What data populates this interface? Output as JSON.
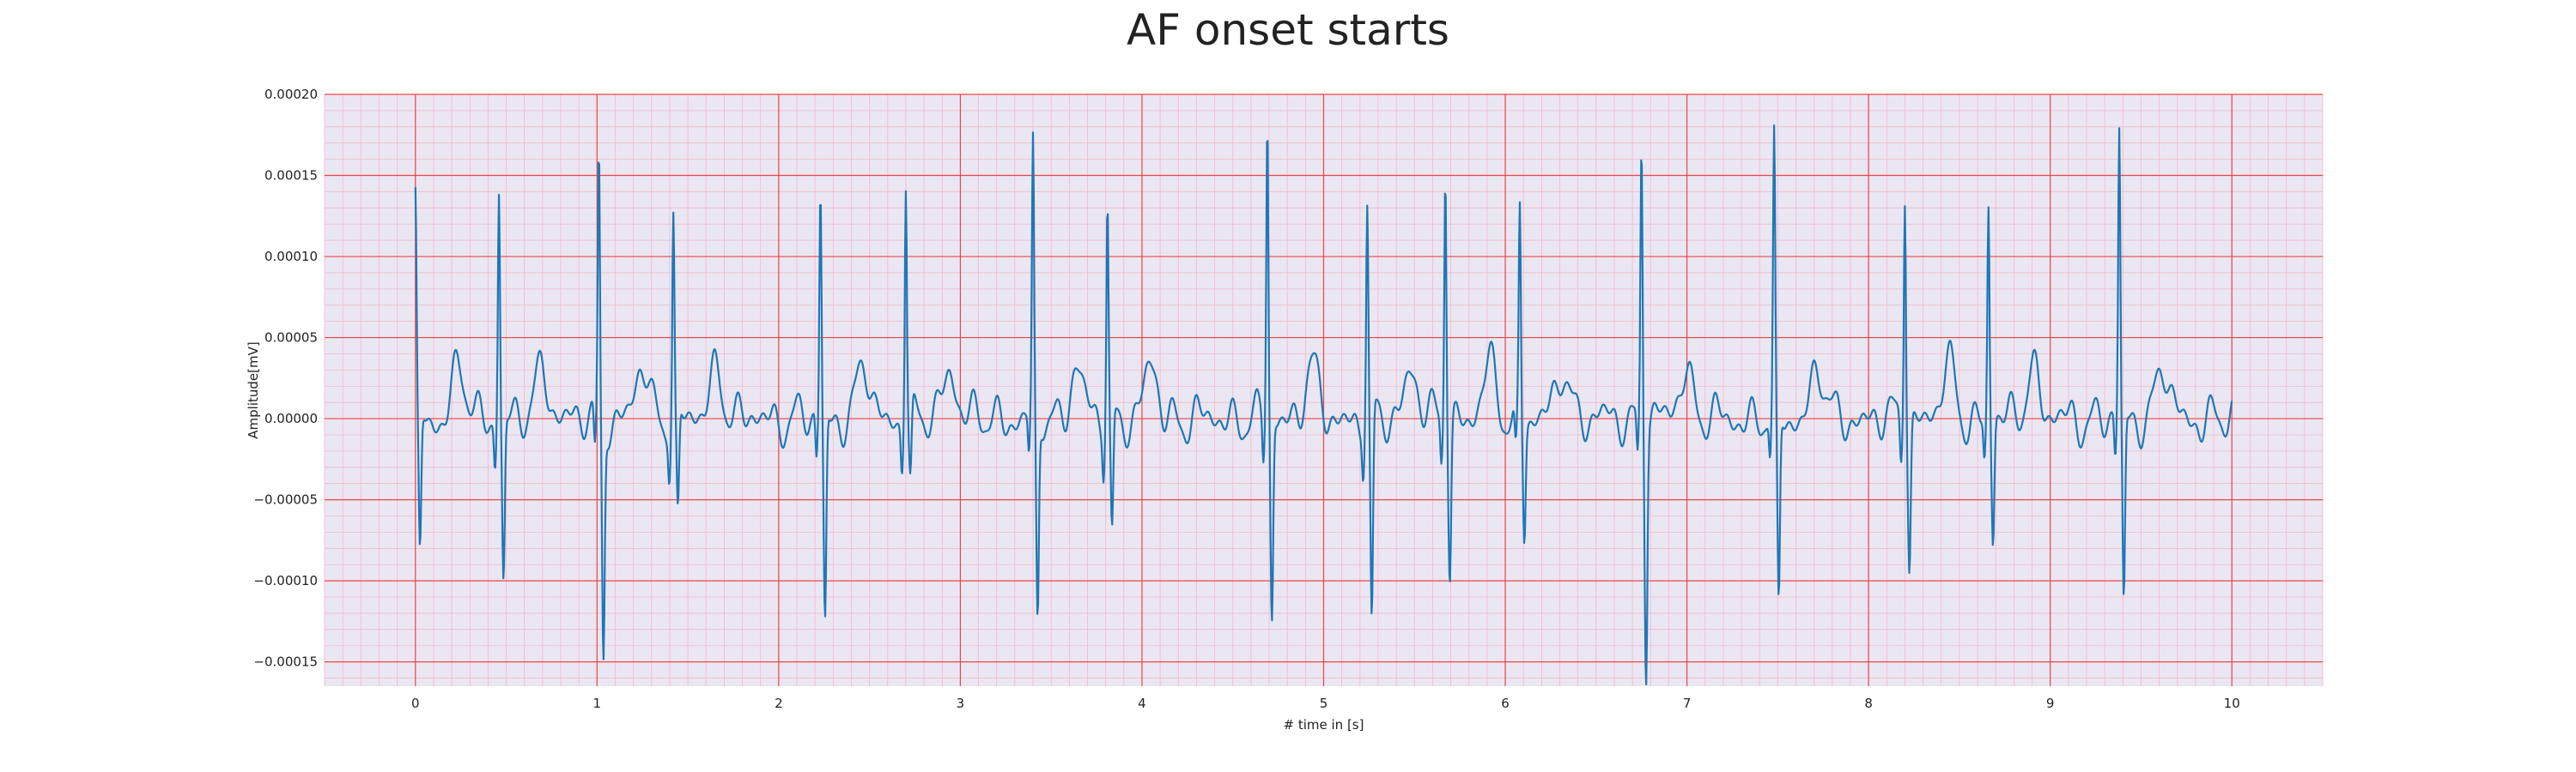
{
  "chart_data": {
    "type": "line",
    "title": "AF onset starts",
    "xlabel": "# time in [s]",
    "ylabel": "Amplitude[mV]",
    "xlim": [
      -0.5,
      10.5
    ],
    "ylim": [
      -0.000165,
      0.0002
    ],
    "xticks": [
      0,
      1,
      2,
      3,
      4,
      5,
      6,
      7,
      8,
      9,
      10
    ],
    "xtick_labels": [
      "0",
      "1",
      "2",
      "3",
      "4",
      "5",
      "6",
      "7",
      "8",
      "9",
      "10"
    ],
    "yticks": [
      -0.00015,
      -0.0001,
      -5e-05,
      0.0,
      5e-05,
      0.0001,
      0.00015,
      0.0002
    ],
    "ytick_labels": [
      "−0.00015",
      "−0.00010",
      "−0.00005",
      "0.00000",
      "0.00005",
      "0.00010",
      "0.00015",
      "0.00020"
    ],
    "grid": true,
    "legend": "none",
    "colors": {
      "line": "#1f77b4",
      "major_grid": "#ee4444",
      "minor_grid": "#f4b6c8",
      "plot_bg": "#eae7f2"
    },
    "r_peaks": [
      {
        "t": 0.0,
        "peak": 0.000132,
        "trough": -9e-05
      },
      {
        "t": 0.46,
        "peak": 0.000145,
        "trough": -0.0001
      },
      {
        "t": 1.01,
        "peak": 0.00016,
        "trough": -0.000145
      },
      {
        "t": 1.42,
        "peak": 0.000128,
        "trough": -6.5e-05
      },
      {
        "t": 2.23,
        "peak": 0.00014,
        "trough": -0.000128
      },
      {
        "t": 2.7,
        "peak": 0.00015,
        "trough": -4.5e-05
      },
      {
        "t": 3.4,
        "peak": 0.000163,
        "trough": -0.000127
      },
      {
        "t": 3.81,
        "peak": 0.000135,
        "trough": -7.5e-05
      },
      {
        "t": 4.69,
        "peak": 0.000185,
        "trough": -0.000125
      },
      {
        "t": 5.24,
        "peak": 0.00013,
        "trough": -0.000135
      },
      {
        "t": 5.67,
        "peak": 0.00016,
        "trough": -9.3e-05
      },
      {
        "t": 6.08,
        "peak": 0.00013,
        "trough": -6.8e-05
      },
      {
        "t": 6.75,
        "peak": 0.000172,
        "trough": -0.00015
      },
      {
        "t": 7.48,
        "peak": 0.000165,
        "trough": -0.000122
      },
      {
        "t": 8.2,
        "peak": 0.000148,
        "trough": -8.8e-05
      },
      {
        "t": 8.66,
        "peak": 0.00013,
        "trough": -7.5e-05
      },
      {
        "t": 9.38,
        "peak": 0.000175,
        "trough": -0.000116
      }
    ],
    "series": [
      {
        "x_start": 0,
        "x_end": 10,
        "sample_interval": 0.004,
        "waveform": "ECG trace with QRS complexes at r_peaks and low-amplitude fibrillatory baseline (about ±0.00002)"
      }
    ]
  }
}
